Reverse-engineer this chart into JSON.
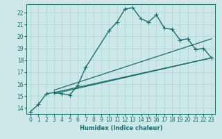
{
  "background_color": "#cce8e8",
  "grid_color": "#b0d0d0",
  "line_color": "#1a6b6b",
  "xlabel": "Humidex (Indice chaleur)",
  "xlim": [
    -0.5,
    23.5
  ],
  "ylim": [
    13.5,
    22.7
  ],
  "yticks": [
    14,
    15,
    16,
    17,
    18,
    19,
    20,
    21,
    22
  ],
  "xticks": [
    0,
    1,
    2,
    3,
    4,
    5,
    6,
    7,
    8,
    9,
    10,
    11,
    12,
    13,
    14,
    15,
    16,
    17,
    18,
    19,
    20,
    21,
    22,
    23
  ],
  "series": [
    {
      "x": [
        0,
        1,
        2,
        3,
        4,
        5,
        6,
        7,
        10,
        11,
        12,
        13,
        14,
        15,
        16,
        17,
        18,
        19,
        20,
        21,
        22,
        23
      ],
      "y": [
        13.7,
        14.3,
        15.2,
        15.3,
        15.2,
        15.1,
        15.9,
        17.4,
        20.5,
        21.2,
        22.3,
        22.4,
        21.5,
        21.2,
        21.8,
        20.7,
        20.6,
        19.7,
        19.8,
        18.9,
        19.0,
        18.2
      ],
      "marker": "+",
      "markersize": 4,
      "linewidth": 1.0,
      "linestyle": "-"
    },
    {
      "x": [
        3,
        23
      ],
      "y": [
        15.5,
        19.8
      ],
      "marker": null,
      "markersize": 0,
      "linewidth": 0.9,
      "linestyle": "-"
    },
    {
      "x": [
        3,
        23
      ],
      "y": [
        15.3,
        18.2
      ],
      "marker": null,
      "markersize": 0,
      "linewidth": 0.9,
      "linestyle": "-"
    },
    {
      "x": [
        3,
        23
      ],
      "y": [
        15.2,
        18.2
      ],
      "marker": null,
      "markersize": 0,
      "linewidth": 0.9,
      "linestyle": "-"
    }
  ]
}
